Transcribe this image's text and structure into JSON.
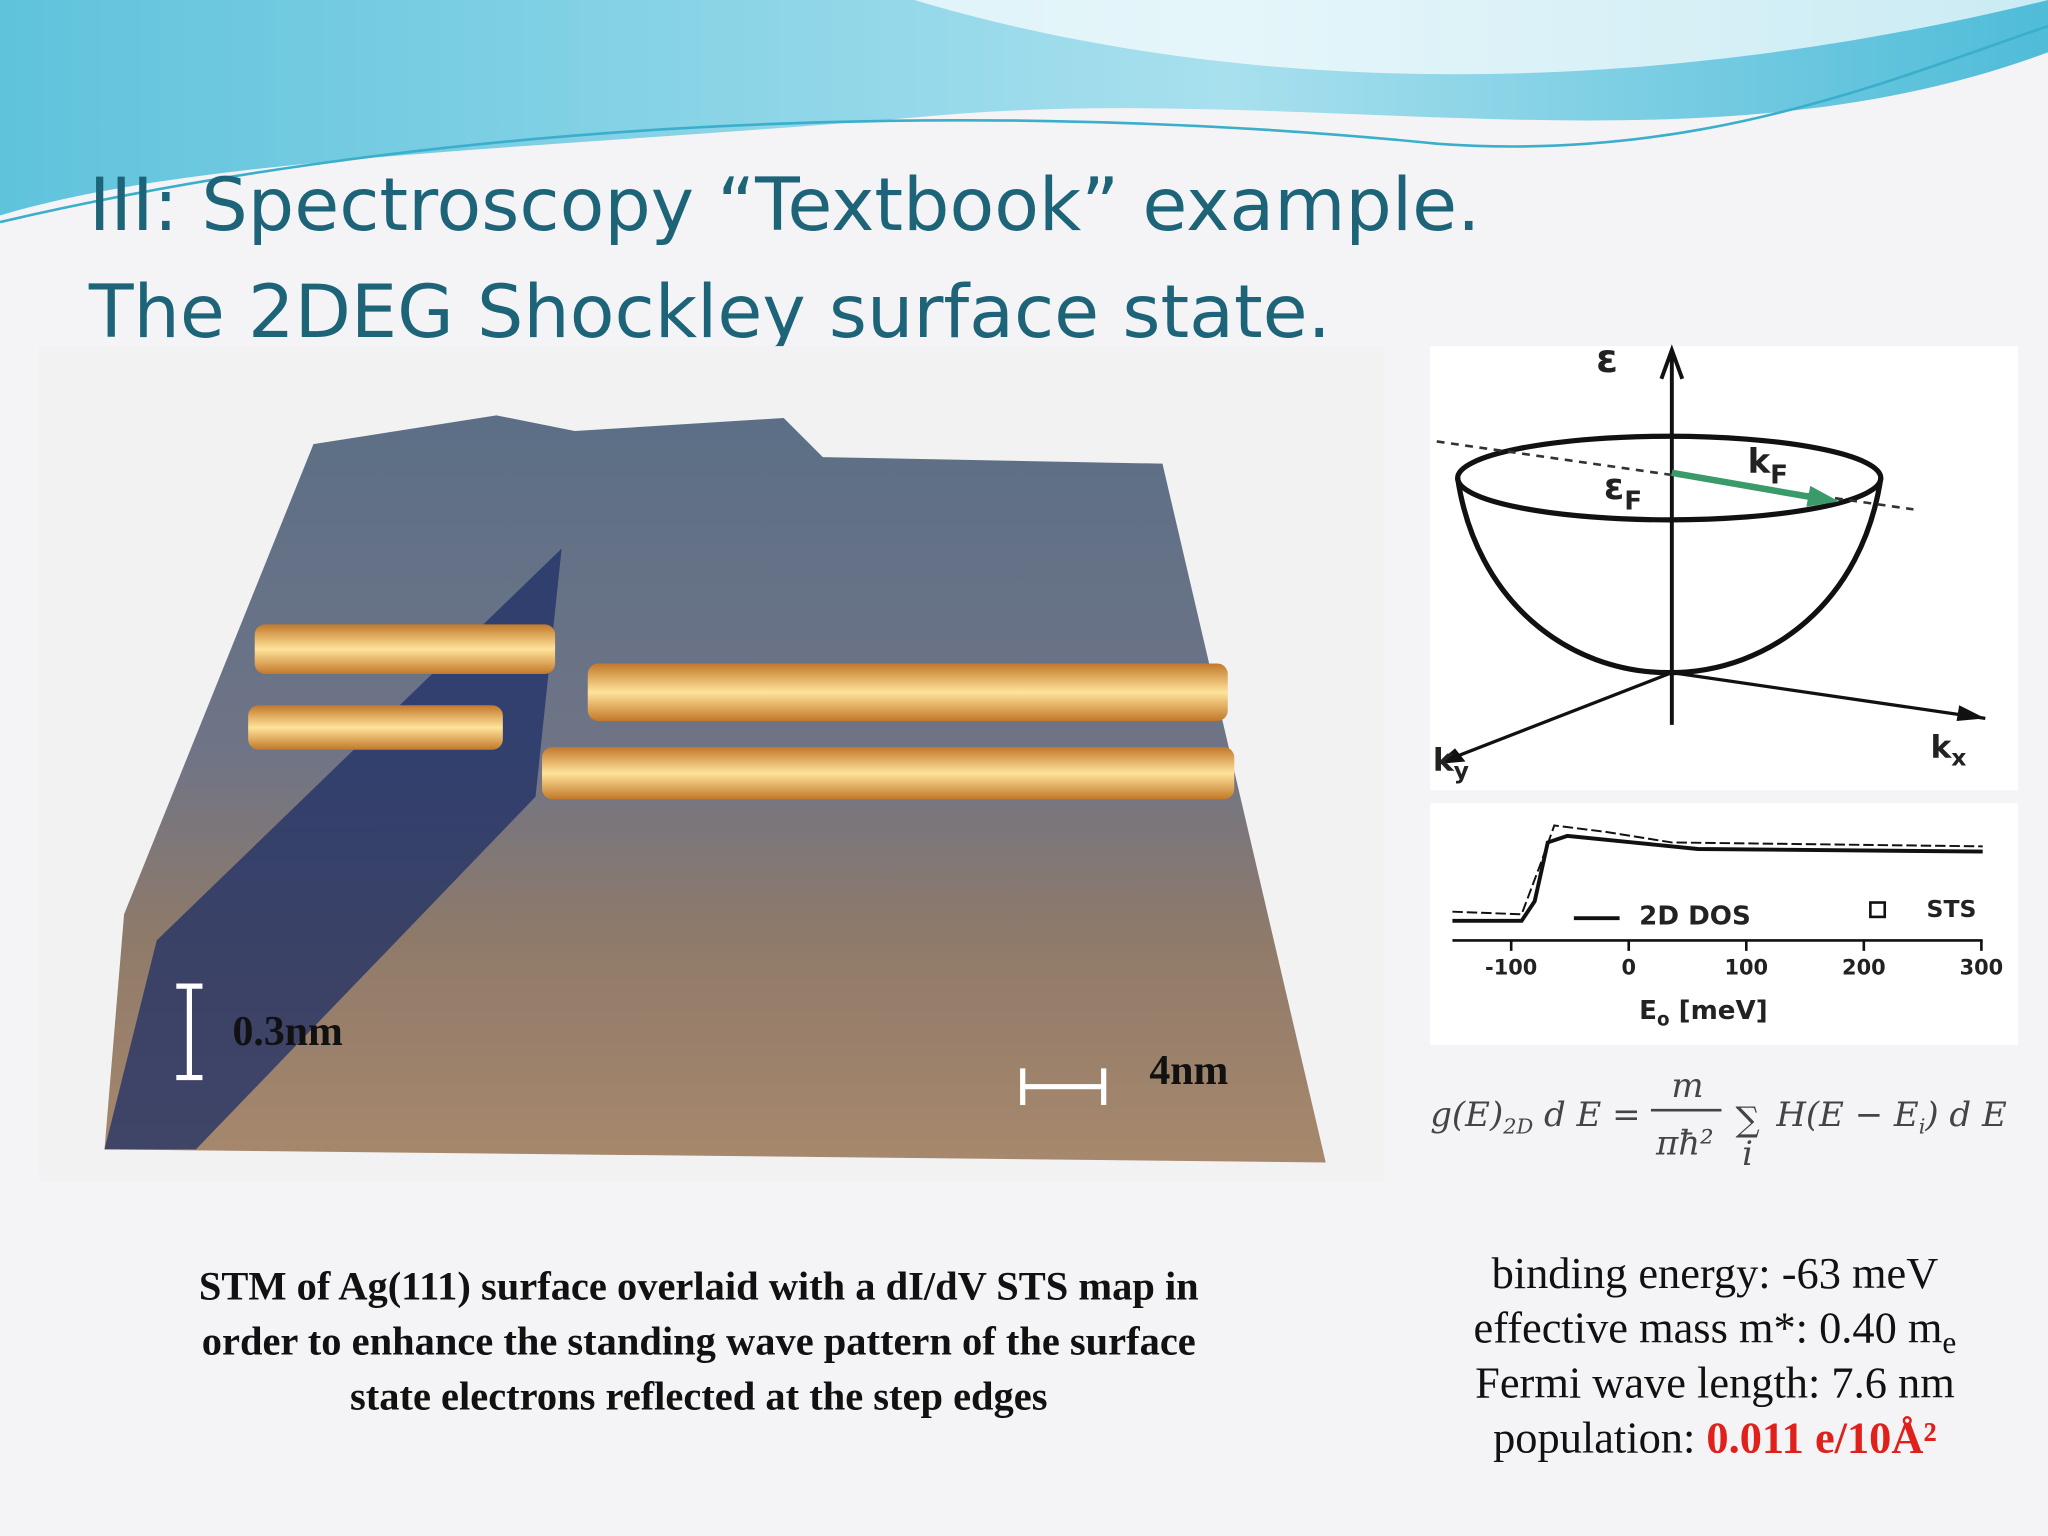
{
  "header": {
    "title_line1": "III: Spectroscopy “Textbook” example.",
    "title_line2": "The 2DEG Shockley surface state."
  },
  "stm_image": {
    "height_scale": "0.3nm",
    "length_scale": "4nm",
    "caption": [
      "STM of Ag(111) surface overlaid with a dI/dV STS map in",
      "order to enhance the standing wave pattern of the surface",
      "state electrons reflected at the step edges"
    ]
  },
  "dispersion_diagram": {
    "energy_axis": "ε",
    "fermi_energy": {
      "base": "ε",
      "sub": "F"
    },
    "fermi_wavevector": {
      "base": "k",
      "sub": "F"
    },
    "ky_axis": {
      "base": "k",
      "sub": "y"
    },
    "kx_axis": {
      "base": "k",
      "sub": "x"
    }
  },
  "sts_plot": {
    "legend": [
      "2D DOS",
      "STS"
    ],
    "x_ticks": [
      "-100",
      "0",
      "100",
      "200",
      "300"
    ],
    "x_label": {
      "base": "E",
      "sub": "o",
      "unit": " [meV]"
    }
  },
  "formula": {
    "lhs": "g(E)",
    "lhs_sub": "2D",
    "mid": " d E =",
    "num": "m",
    "den": "πħ²",
    "sum": "∑",
    "sum_index": "i",
    "rhs": "H(E − E",
    "rhs_sub": "i",
    "rhs_end": ") d E"
  },
  "properties": {
    "binding_energy": "binding energy: -63 meV",
    "effective_mass": {
      "text": "effective mass m*: 0.40 m",
      "sub": "e"
    },
    "fermi_wavelength": "Fermi wave length: 7.6 nm",
    "population": {
      "label": "population: ",
      "value": "0.011 e/10Å²"
    }
  }
}
